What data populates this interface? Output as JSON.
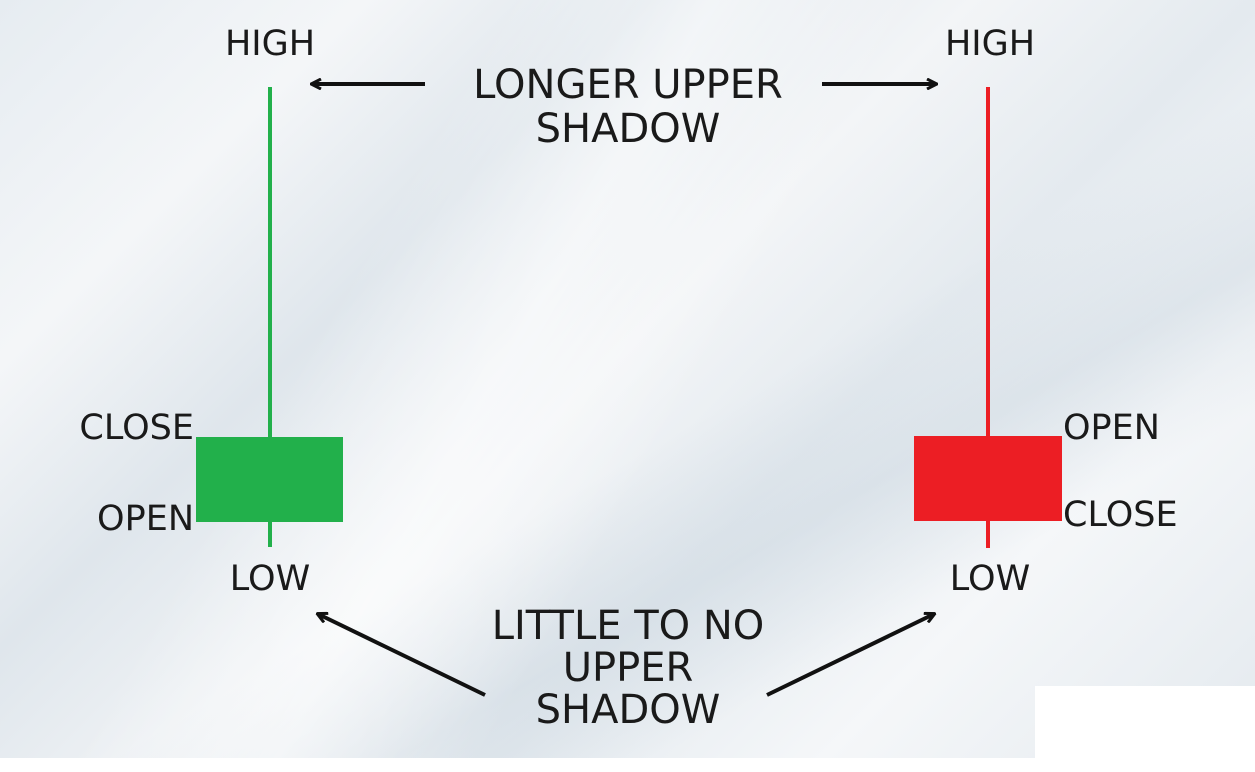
{
  "colors": {
    "bullish": "#22b04b",
    "bearish": "#ec1e24",
    "text": "#1a1a1a",
    "arrow": "#111111"
  },
  "top_caption": [
    "LONGER UPPER",
    "SHADOW"
  ],
  "bottom_caption": [
    "LITTLE TO NO",
    "UPPER",
    "SHADOW"
  ],
  "left_candle": {
    "high_label": "HIGH",
    "close_label": "CLOSE",
    "open_label": "OPEN",
    "low_label": "LOW"
  },
  "right_candle": {
    "high_label": "HIGH",
    "open_label": "OPEN",
    "close_label": "CLOSE",
    "low_label": "LOW"
  }
}
